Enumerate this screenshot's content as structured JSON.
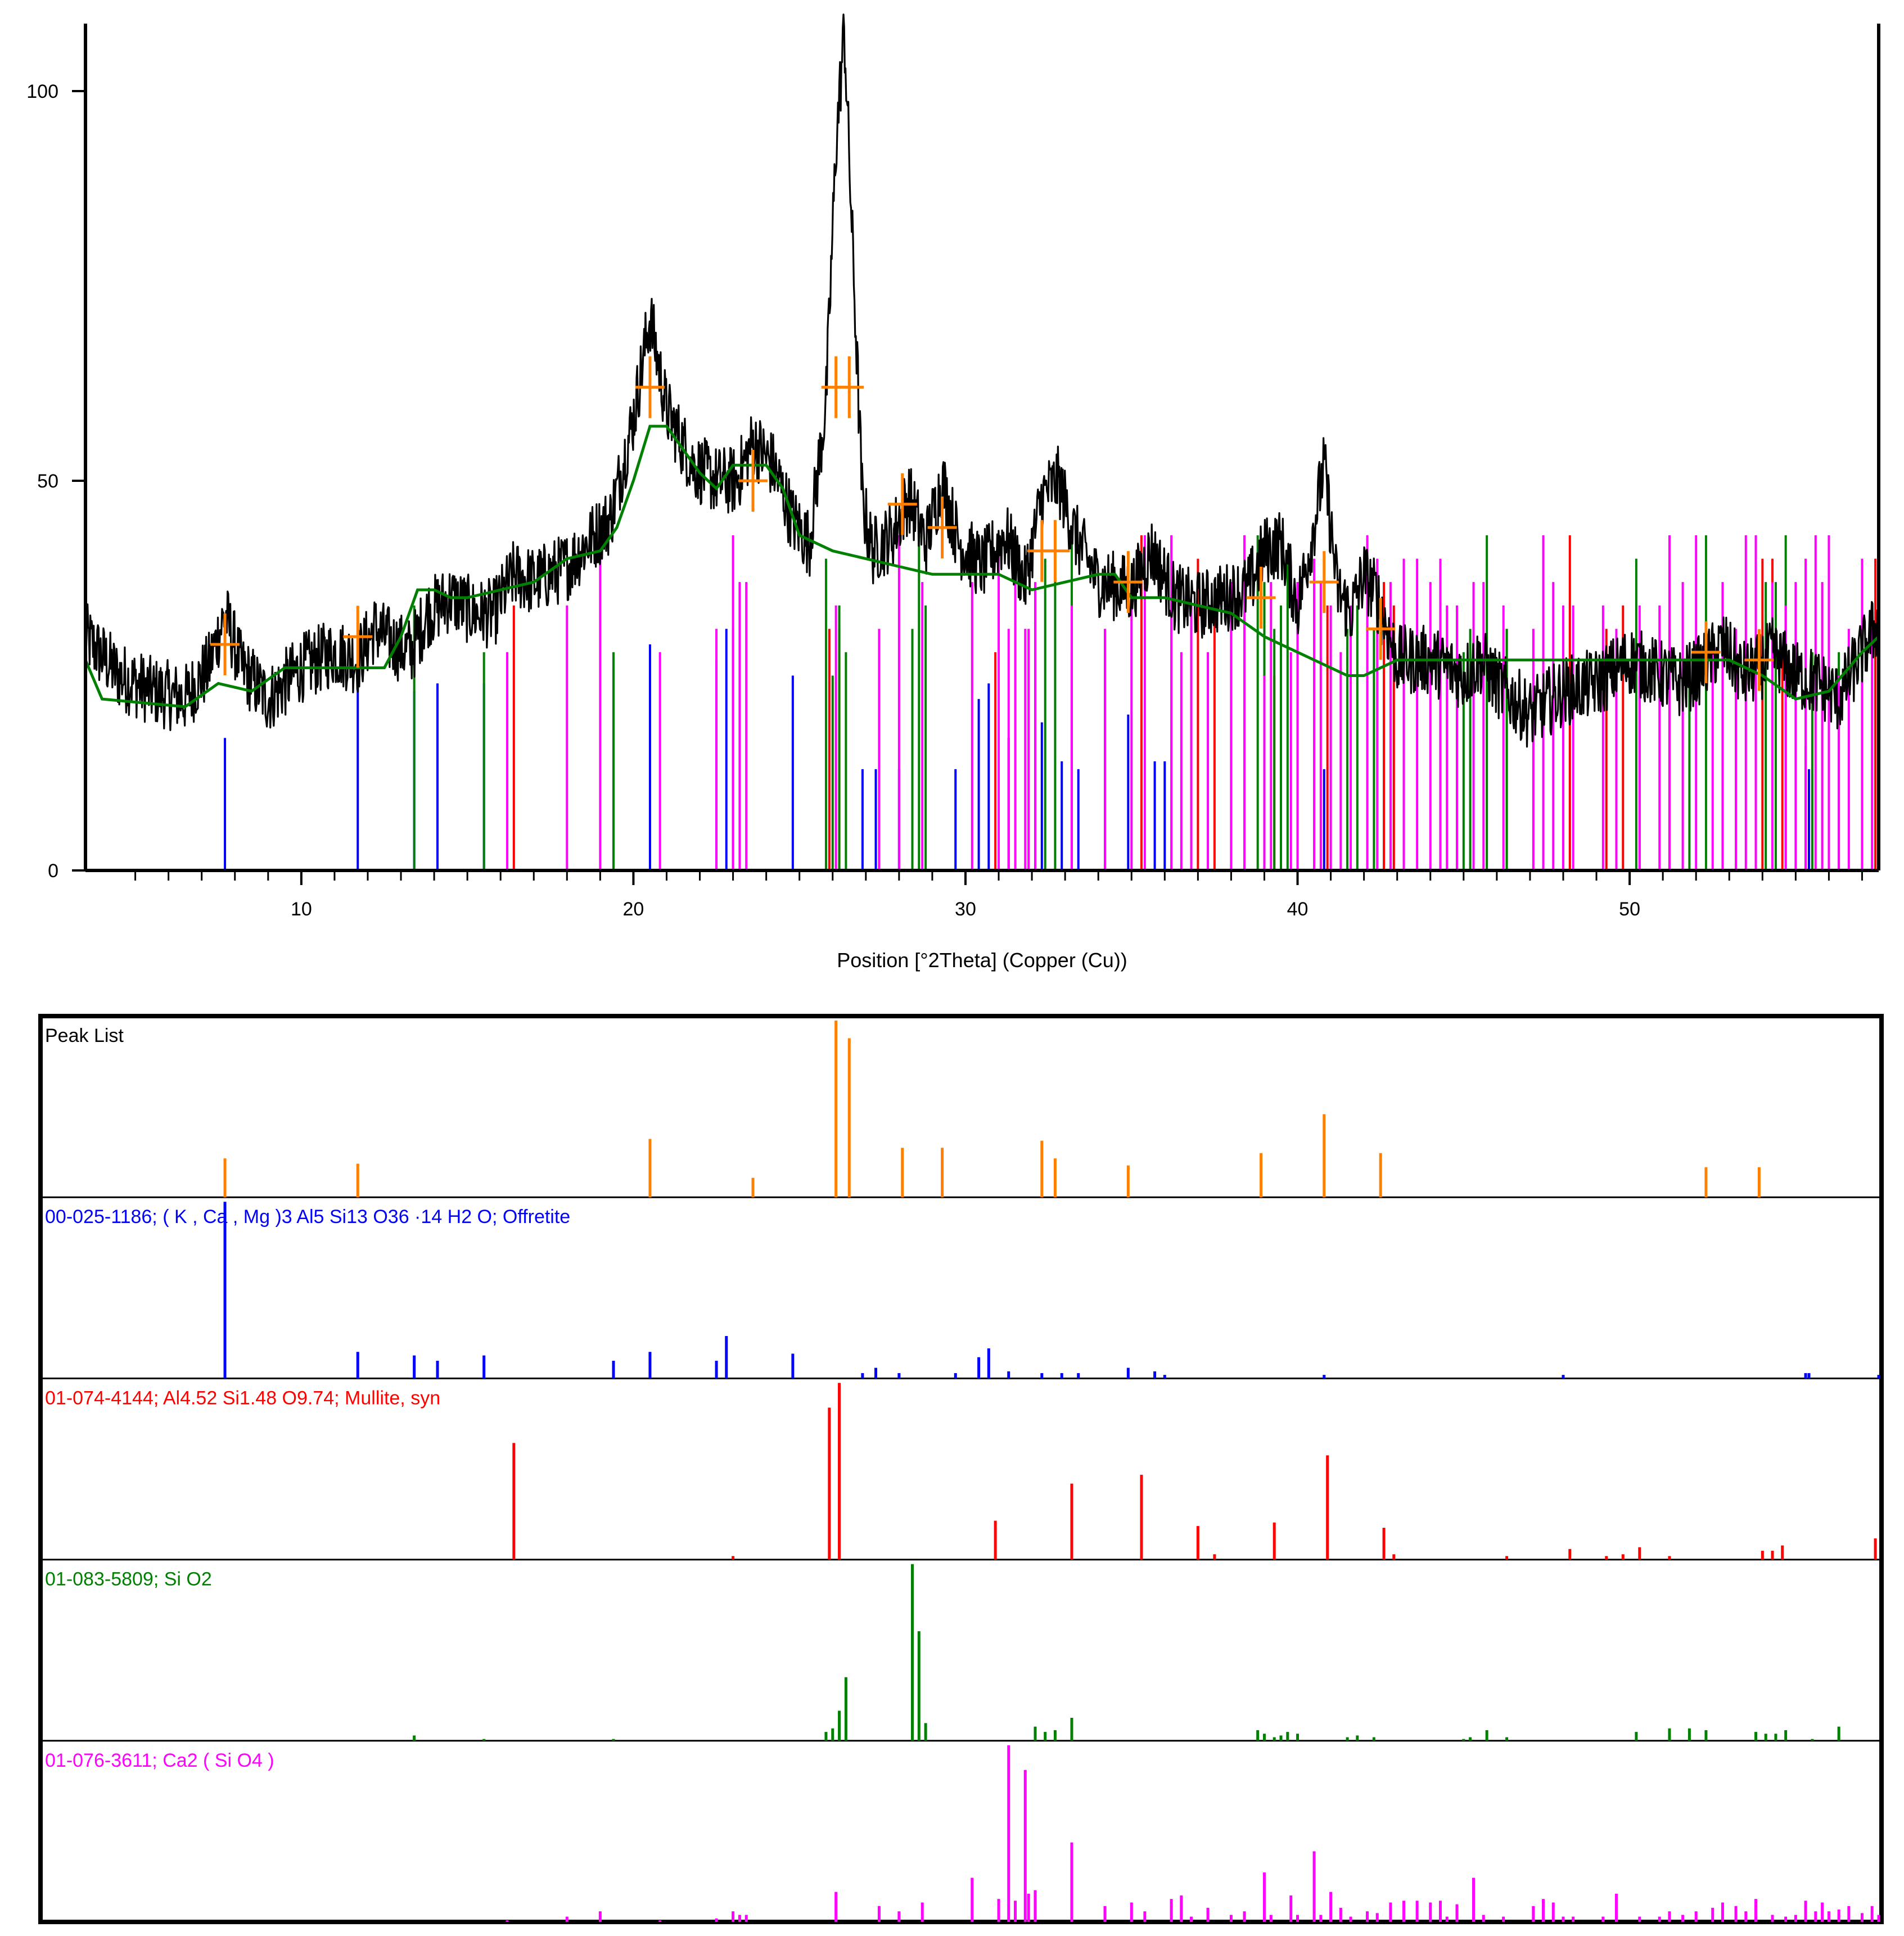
{
  "chart_data": [
    {
      "type": "line",
      "title": "",
      "xlabel": "Position [°2Theta] (Copper (Cu))",
      "ylabel": "",
      "xlim": [
        3.5,
        57.5
      ],
      "ylim": [
        0,
        108
      ],
      "x_ticks": [
        "10",
        "20",
        "30",
        "40",
        "50"
      ],
      "y_ticks": [
        "0",
        "50",
        "100"
      ],
      "series": [
        {
          "role": "measured",
          "color": "#000000",
          "x": [
            3.5,
            4.5,
            5.5,
            6.5,
            7.2,
            7.7,
            8.2,
            9.0,
            10.0,
            11.0,
            11.7,
            12.2,
            12.8,
            13.3,
            13.8,
            14.5,
            15.2,
            15.8,
            16.4,
            17.0,
            18.0,
            18.6,
            19.3,
            20.0,
            20.5,
            21.0,
            21.8,
            22.5,
            23.1,
            23.6,
            24.2,
            24.8,
            25.3,
            25.8,
            26.1,
            26.35,
            26.6,
            26.9,
            27.2,
            27.8,
            28.3,
            28.8,
            29.3,
            29.8,
            30.5,
            31.2,
            31.8,
            32.3,
            32.8,
            33.3,
            34.0,
            35.0,
            35.6,
            36.3,
            37.0,
            37.8,
            38.5,
            39.0,
            39.5,
            40.0,
            40.4,
            40.8,
            41.2,
            41.6,
            42.0,
            42.4,
            43.0,
            44.0,
            45.0,
            45.5,
            46.0,
            47.0,
            48.0,
            49.0,
            50.0,
            51.0,
            51.5,
            52.2,
            52.8,
            53.4,
            53.9,
            54.3,
            55.0,
            55.7,
            56.3,
            57.0,
            57.5
          ],
          "y": [
            30,
            25,
            23,
            22,
            26,
            33,
            26,
            22,
            26,
            28,
            27,
            31,
            29,
            28,
            33,
            35,
            33,
            33,
            38,
            37,
            39,
            42,
            45,
            58,
            71,
            59,
            52,
            50,
            50,
            55,
            52,
            45,
            42,
            60,
            93,
            108,
            80,
            47,
            41,
            43,
            48,
            42,
            50,
            42,
            39,
            43,
            37,
            48,
            50,
            43,
            37,
            36,
            41,
            35,
            34,
            35,
            36,
            41,
            42,
            34,
            42,
            52,
            36,
            33,
            38,
            35,
            27,
            27,
            25,
            27,
            24,
            20,
            23,
            24,
            27,
            25,
            24,
            26,
            29,
            25,
            26,
            28,
            25,
            24,
            22,
            28,
            32
          ]
        },
        {
          "role": "background",
          "color": "#008000",
          "x": [
            3.5,
            4.0,
            6.5,
            7.5,
            8.5,
            9.5,
            10.5,
            11.5,
            12.5,
            13.0,
            13.5,
            14.0,
            14.5,
            15.0,
            16.0,
            17.0,
            18.0,
            19.0,
            19.5,
            20.0,
            20.5,
            21.0,
            21.5,
            22.0,
            22.5,
            23.0,
            24.0,
            24.5,
            25.0,
            26.0,
            27.0,
            28.0,
            29.0,
            30.0,
            31.0,
            32.0,
            33.0,
            34.0,
            34.5,
            35.0,
            36.0,
            37.0,
            38.0,
            39.0,
            40.0,
            41.0,
            41.5,
            42.0,
            43.0,
            44.0,
            45.0,
            46.0,
            47.0,
            48.0,
            49.0,
            50.0,
            51.0,
            52.0,
            53.0,
            54.0,
            55.0,
            56.0,
            57.0,
            57.5
          ],
          "y": [
            27,
            22,
            21,
            24,
            23,
            26,
            26,
            26,
            26,
            30,
            36,
            36,
            35,
            35,
            36,
            37,
            40,
            41,
            44,
            50,
            57,
            57,
            54,
            51,
            49,
            52,
            52,
            49,
            43,
            41,
            40,
            39,
            38,
            38,
            38,
            36,
            37,
            38,
            38,
            35,
            35,
            34,
            33,
            30,
            28,
            26,
            25,
            25,
            27,
            27,
            27,
            27,
            27,
            27,
            27,
            27,
            27,
            27,
            27,
            25,
            22,
            23,
            28,
            30
          ]
        }
      ],
      "peak_markers": {
        "color": "#ff8000",
        "x": [
          7.7,
          11.7,
          20.5,
          23.6,
          26.1,
          26.5,
          28.1,
          29.3,
          32.3,
          32.7,
          34.9,
          38.9,
          40.8,
          42.5,
          52.3,
          53.9
        ],
        "y": [
          29,
          30,
          62,
          50,
          62,
          62,
          47,
          44,
          41,
          41,
          37,
          35,
          37,
          31,
          28,
          27
        ]
      },
      "stick_layers": [
        {
          "name": "Offretite",
          "color": "#0000ff",
          "x": [
            7.7,
            11.7,
            13.4,
            14.1,
            15.5,
            19.4,
            20.5,
            22.5,
            22.8,
            24.8,
            26.9,
            27.3,
            28.0,
            29.7,
            30.4,
            30.7,
            31.3,
            32.3,
            32.9,
            33.4,
            34.9,
            35.7,
            36.0,
            40.8,
            48.0,
            55.3,
            55.4,
            57.5
          ],
          "y": [
            17,
            26,
            23,
            24,
            24,
            26,
            29,
            27,
            31,
            25,
            13,
            13,
            13,
            13,
            22,
            24,
            17,
            19,
            14,
            13,
            20,
            14,
            14,
            13,
            13,
            16,
            13,
            16
          ]
        }
      ]
    },
    {
      "type": "bar",
      "title": "",
      "xlim": [
        3.5,
        57.5
      ],
      "panels": [
        {
          "label": "Peak List",
          "color": "#ff8000",
          "x": [
            7.7,
            11.7,
            20.5,
            23.6,
            26.1,
            26.5,
            28.1,
            29.3,
            32.3,
            32.7,
            34.9,
            38.9,
            40.8,
            42.5,
            52.3,
            53.9
          ],
          "values": [
            22,
            19,
            33,
            11,
            100,
            90,
            28,
            28,
            32,
            22,
            18,
            25,
            47,
            25,
            17,
            17
          ]
        },
        {
          "label": "00-025-1186; ( K , Ca , Mg )3 Al5 Si13 O36 ·14 H2 O; Offretite",
          "color": "#0000ff",
          "x": [
            7.7,
            11.7,
            13.4,
            14.1,
            15.5,
            19.4,
            20.5,
            22.5,
            22.8,
            24.8,
            26.9,
            27.3,
            28.0,
            29.7,
            30.4,
            30.7,
            31.3,
            32.3,
            32.9,
            33.4,
            34.9,
            35.7,
            36.0,
            40.8,
            48.0,
            55.3,
            55.4,
            57.5
          ],
          "values": [
            100,
            15,
            13,
            10,
            13,
            10,
            15,
            10,
            24,
            14,
            3,
            6,
            3,
            3,
            12,
            17,
            4,
            3,
            3,
            3,
            6,
            4,
            2,
            2,
            2,
            3,
            3,
            2
          ]
        },
        {
          "label": "01-074-4144; Al4.52 Si1.48 O9.74; Mullite, syn",
          "color": "#ff0000",
          "x": [
            16.4,
            23.0,
            25.9,
            26.2,
            30.9,
            33.2,
            35.3,
            37.0,
            37.5,
            39.3,
            40.9,
            42.6,
            42.9,
            46.3,
            48.2,
            49.3,
            49.8,
            50.3,
            51.2,
            54.0,
            54.3,
            54.6,
            57.4
          ],
          "values": [
            66,
            2,
            86,
            100,
            22,
            43,
            48,
            19,
            3,
            21,
            59,
            18,
            3,
            2,
            6,
            2,
            3,
            7,
            2,
            5,
            5,
            8,
            12
          ]
        },
        {
          "label": "01-083-5809; Si O2",
          "color": "#008000",
          "x": [
            13.4,
            15.5,
            19.4,
            25.8,
            26.0,
            26.2,
            26.4,
            28.4,
            28.6,
            28.8,
            32.1,
            32.4,
            32.7,
            33.2,
            38.8,
            39.0,
            39.3,
            39.5,
            39.7,
            40.0,
            41.5,
            41.8,
            42.3,
            45.0,
            45.2,
            45.7,
            46.3,
            50.2,
            51.2,
            51.8,
            52.3,
            53.8,
            54.1,
            54.4,
            54.7,
            55.5,
            56.3
          ],
          "values": [
            3,
            1,
            1,
            5,
            7,
            17,
            36,
            100,
            62,
            10,
            8,
            5,
            6,
            13,
            6,
            4,
            2,
            3,
            5,
            4,
            2,
            3,
            2,
            1,
            2,
            6,
            2,
            5,
            7,
            7,
            6,
            5,
            4,
            4,
            6,
            1,
            8
          ]
        },
        {
          "label": "01-076-3611; Ca2 ( Si O4 )",
          "color": "#ff00ff",
          "x": [
            16.2,
            18.0,
            19.0,
            20.8,
            22.5,
            23.0,
            23.2,
            23.4,
            26.1,
            27.4,
            28.0,
            28.7,
            30.2,
            31.0,
            31.3,
            31.5,
            31.8,
            31.9,
            32.1,
            33.2,
            34.2,
            35.0,
            35.4,
            36.2,
            36.5,
            36.8,
            37.3,
            38.0,
            38.4,
            39.0,
            39.2,
            39.8,
            40.0,
            40.5,
            40.7,
            41.0,
            41.3,
            41.6,
            42.1,
            42.4,
            42.8,
            43.2,
            43.6,
            44.0,
            44.3,
            44.5,
            44.8,
            45.3,
            45.6,
            46.2,
            47.1,
            47.4,
            47.7,
            48.0,
            48.3,
            49.2,
            49.6,
            50.3,
            50.9,
            51.2,
            51.6,
            52.0,
            52.5,
            52.8,
            53.2,
            53.5,
            53.8,
            54.3,
            54.7,
            55.0,
            55.3,
            55.6,
            55.8,
            56.0,
            56.3,
            56.6,
            57.0,
            57.3,
            57.5
          ],
          "values": [
            1,
            3,
            6,
            1,
            2,
            6,
            4,
            4,
            17,
            9,
            6,
            11,
            25,
            13,
            100,
            12,
            86,
            16,
            18,
            45,
            9,
            11,
            6,
            13,
            15,
            3,
            8,
            4,
            6,
            28,
            4,
            15,
            4,
            40,
            4,
            17,
            8,
            3,
            6,
            5,
            11,
            12,
            12,
            11,
            12,
            3,
            10,
            25,
            4,
            3,
            9,
            13,
            11,
            3,
            3,
            3,
            16,
            3,
            3,
            6,
            4,
            6,
            8,
            11,
            9,
            6,
            13,
            4,
            3,
            4,
            12,
            6,
            11,
            6,
            7,
            9,
            5,
            9,
            4
          ]
        }
      ]
    }
  ]
}
